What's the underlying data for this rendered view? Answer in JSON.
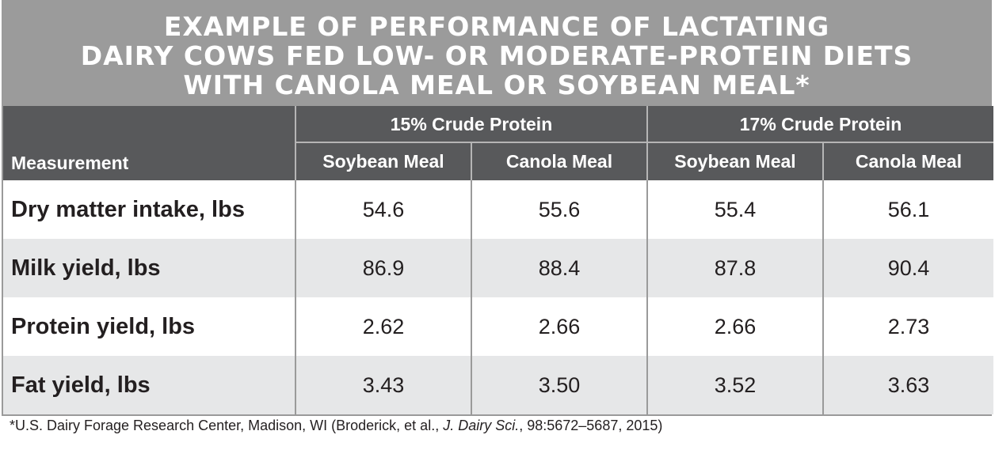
{
  "title_lines": [
    "EXAMPLE OF PERFORMANCE OF LACTATING",
    "DAIRY COWS FED LOW- OR MODERATE-PROTEIN DIETS",
    "WITH CANOLA MEAL OR SOYBEAN MEAL*"
  ],
  "table": {
    "measurement_header": "Measurement",
    "groups": [
      "15% Crude Protein",
      "17% Crude Protein"
    ],
    "subheaders": [
      "Soybean Meal",
      "Canola Meal",
      "Soybean Meal",
      "Canola Meal"
    ],
    "rows": [
      {
        "label": "Dry matter intake, lbs",
        "values": [
          "54.6",
          "55.6",
          "55.4",
          "56.1"
        ]
      },
      {
        "label": "Milk yield, lbs",
        "values": [
          "86.9",
          "88.4",
          "87.8",
          "90.4"
        ]
      },
      {
        "label": "Protein yield, lbs",
        "values": [
          "2.62",
          "2.66",
          "2.66",
          "2.73"
        ]
      },
      {
        "label": "Fat yield, lbs",
        "values": [
          "3.43",
          "3.50",
          "3.52",
          "3.63"
        ]
      }
    ]
  },
  "footnote": {
    "prefix": "*U.S. Dairy Forage Research Center, Madison, WI (Broderick, et al., ",
    "journal": "J. Dairy Sci.",
    "suffix": ", 98:5672–5687, 2015)"
  },
  "colors": {
    "title_band": "#9b9b9b",
    "header_band": "#58595b",
    "row_stripe": "#e6e7e8"
  }
}
